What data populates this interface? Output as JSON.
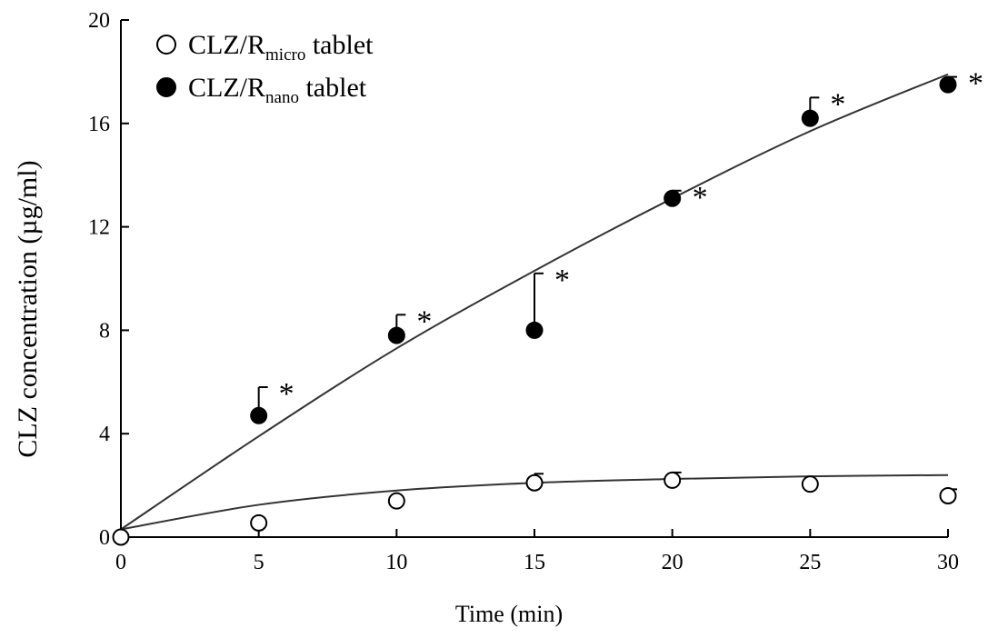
{
  "chart_data": {
    "type": "scatter",
    "x_label": "Time (min)",
    "y_label": "CLZ concentration (µg/ml)",
    "xlim": [
      0,
      30
    ],
    "ylim": [
      0,
      20
    ],
    "x_ticks": [
      0,
      5,
      10,
      15,
      20,
      25,
      30
    ],
    "y_ticks": [
      0,
      4,
      8,
      12,
      16,
      20
    ],
    "x_tick_labels": [
      "0",
      "5",
      "10",
      "15",
      "20",
      "25",
      "30"
    ],
    "y_tick_labels": [
      "0",
      "4",
      "8",
      "12",
      "16",
      "20"
    ],
    "grid": false,
    "legend_position": "top-left",
    "significance_marker": "*",
    "series": [
      {
        "legend_main": "CLZ/R",
        "legend_sub": "micro",
        "legend_suffix": " tablet",
        "marker": "open-circle",
        "color": "#000000",
        "x": [
          0,
          5,
          10,
          15,
          20,
          25,
          30
        ],
        "y": [
          0.0,
          0.55,
          1.4,
          2.1,
          2.2,
          2.05,
          1.6
        ],
        "err": [
          0,
          0,
          0,
          0.35,
          0.3,
          0,
          0.25
        ],
        "fit": [
          [
            0,
            0.3
          ],
          [
            5,
            1.25
          ],
          [
            10,
            1.8
          ],
          [
            15,
            2.1
          ],
          [
            20,
            2.25
          ],
          [
            25,
            2.35
          ],
          [
            30,
            2.4
          ]
        ],
        "significant": []
      },
      {
        "legend_main": "CLZ/R",
        "legend_sub": "nano",
        "legend_suffix": " tablet",
        "marker": "filled-circle",
        "color": "#000000",
        "x": [
          5,
          10,
          15,
          20,
          25,
          30
        ],
        "y": [
          4.7,
          7.8,
          8.0,
          13.1,
          16.2,
          17.5
        ],
        "err": [
          1.1,
          0.8,
          2.2,
          0.3,
          0.8,
          0.3
        ],
        "fit": [
          [
            0,
            0.3
          ],
          [
            5,
            3.9
          ],
          [
            10,
            7.3
          ],
          [
            15,
            10.3
          ],
          [
            20,
            13.1
          ],
          [
            25,
            15.7
          ],
          [
            30,
            17.9
          ]
        ],
        "significant": [
          5,
          10,
          15,
          20,
          25,
          30
        ]
      }
    ]
  }
}
